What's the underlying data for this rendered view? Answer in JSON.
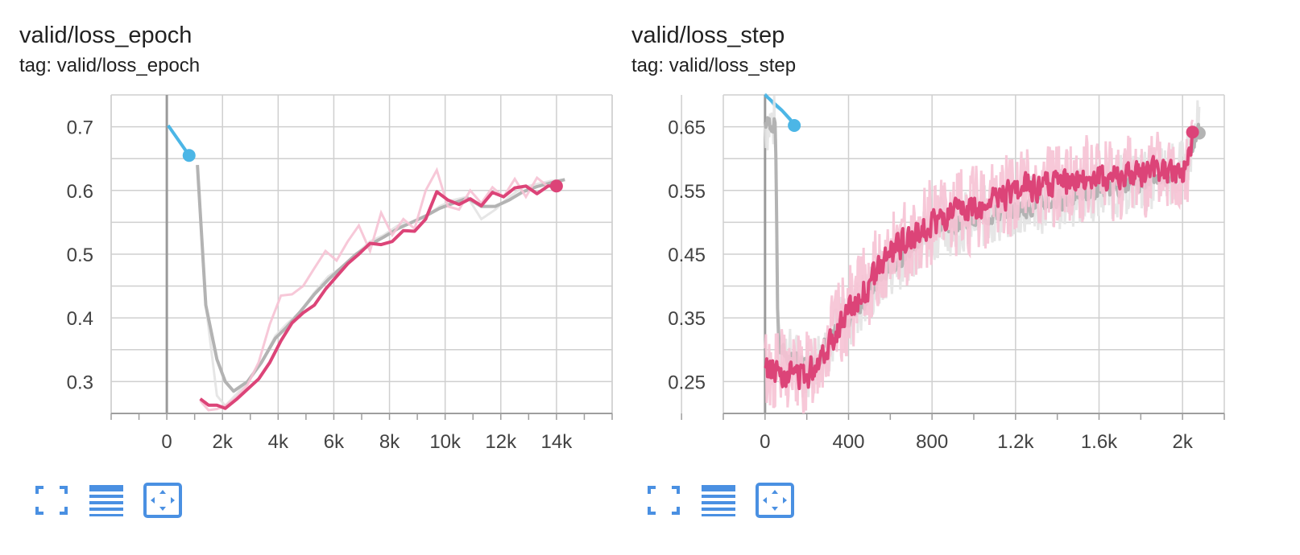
{
  "colors": {
    "pink": "#dc4478",
    "pink_light": "#f6c2d4",
    "gray": "#b3b3b3",
    "gray_light": "#e3e3e3",
    "blue": "#4cb6e6",
    "grid": "#cfcfcf",
    "axis": "#9e9e9e",
    "icon": "#4a90e2"
  },
  "toolbar": {
    "fullscreen_icon": "fullscreen-icon",
    "data_table_icon": "data-table-icon",
    "fit_domain_icon": "fit-domain-icon"
  },
  "cards": [
    {
      "title": "valid/loss_epoch",
      "tag": "tag: valid/loss_epoch",
      "chart_data": {
        "type": "line",
        "title": "valid/loss_epoch",
        "xlim": [
          -2000,
          16000
        ],
        "ylim": [
          0.25,
          0.75
        ],
        "x_ticks": [
          0,
          2000,
          4000,
          6000,
          8000,
          10000,
          12000,
          14000
        ],
        "x_tick_labels": [
          "0",
          "2k",
          "4k",
          "6k",
          "8k",
          "10k",
          "12k",
          "14k"
        ],
        "y_ticks": [
          0.3,
          0.4,
          0.5,
          0.6,
          0.7
        ],
        "y_tick_labels": [
          "0.3",
          "0.4",
          "0.5",
          "0.6",
          "0.7"
        ],
        "grid": true,
        "series": [
          {
            "color": "#4cb6e6",
            "end_marker": true,
            "raw": [
              [
                50,
                0.702
              ],
              [
                800,
                0.655
              ]
            ],
            "smoothed": [
              [
                50,
                0.702
              ],
              [
                800,
                0.655
              ]
            ]
          },
          {
            "color": "#b3b3b3",
            "raw": [
              [
                1100,
                0.64
              ],
              [
                1400,
                0.42
              ],
              [
                1800,
                0.278
              ],
              [
                2100,
                0.262
              ],
              [
                2500,
                0.28
              ],
              [
                2900,
                0.3
              ],
              [
                3400,
                0.33
              ],
              [
                3900,
                0.372
              ],
              [
                4300,
                0.39
              ],
              [
                4800,
                0.41
              ],
              [
                5300,
                0.44
              ],
              [
                5800,
                0.465
              ],
              [
                6300,
                0.48
              ],
              [
                6800,
                0.5
              ],
              [
                7300,
                0.52
              ],
              [
                7800,
                0.53
              ],
              [
                8300,
                0.545
              ],
              [
                8800,
                0.55
              ],
              [
                9300,
                0.56
              ],
              [
                9800,
                0.575
              ],
              [
                10300,
                0.585
              ],
              [
                10800,
                0.59
              ],
              [
                11300,
                0.555
              ],
              [
                11800,
                0.57
              ],
              [
                12300,
                0.59
              ],
              [
                12800,
                0.605
              ],
              [
                13300,
                0.61
              ],
              [
                13800,
                0.615
              ],
              [
                14300,
                0.617
              ]
            ],
            "smoothed": [
              [
                1100,
                0.64
              ],
              [
                1400,
                0.42
              ],
              [
                1800,
                0.335
              ],
              [
                2100,
                0.3
              ],
              [
                2400,
                0.285
              ],
              [
                2900,
                0.3
              ],
              [
                3400,
                0.33
              ],
              [
                3900,
                0.368
              ],
              [
                4300,
                0.385
              ],
              [
                4800,
                0.41
              ],
              [
                5300,
                0.437
              ],
              [
                5800,
                0.46
              ],
              [
                6300,
                0.48
              ],
              [
                6800,
                0.5
              ],
              [
                7300,
                0.515
              ],
              [
                7800,
                0.527
              ],
              [
                8300,
                0.54
              ],
              [
                8800,
                0.55
              ],
              [
                9300,
                0.56
              ],
              [
                9800,
                0.572
              ],
              [
                10300,
                0.58
              ],
              [
                10800,
                0.588
              ],
              [
                11300,
                0.575
              ],
              [
                11800,
                0.575
              ],
              [
                12300,
                0.585
              ],
              [
                12800,
                0.598
              ],
              [
                13300,
                0.606
              ],
              [
                13800,
                0.612
              ],
              [
                14300,
                0.617
              ]
            ]
          },
          {
            "color": "#dc4478",
            "end_marker": true,
            "raw": [
              [
                1200,
                0.27
              ],
              [
                1500,
                0.255
              ],
              [
                1800,
                0.257
              ],
              [
                2100,
                0.262
              ],
              [
                2500,
                0.275
              ],
              [
                2900,
                0.295
              ],
              [
                3300,
                0.33
              ],
              [
                3700,
                0.39
              ],
              [
                4100,
                0.435
              ],
              [
                4500,
                0.437
              ],
              [
                4900,
                0.45
              ],
              [
                5300,
                0.478
              ],
              [
                5700,
                0.505
              ],
              [
                6100,
                0.49
              ],
              [
                6500,
                0.52
              ],
              [
                6900,
                0.545
              ],
              [
                7300,
                0.505
              ],
              [
                7700,
                0.565
              ],
              [
                8100,
                0.53
              ],
              [
                8500,
                0.555
              ],
              [
                8900,
                0.54
              ],
              [
                9300,
                0.6
              ],
              [
                9700,
                0.632
              ],
              [
                10100,
                0.575
              ],
              [
                10500,
                0.57
              ],
              [
                10900,
                0.6
              ],
              [
                11300,
                0.58
              ],
              [
                11700,
                0.605
              ],
              [
                12100,
                0.59
              ],
              [
                12500,
                0.618
              ],
              [
                12900,
                0.59
              ],
              [
                13300,
                0.62
              ],
              [
                13700,
                0.606
              ],
              [
                14000,
                0.612
              ]
            ],
            "smoothed": [
              [
                1200,
                0.273
              ],
              [
                1500,
                0.263
              ],
              [
                1800,
                0.263
              ],
              [
                2100,
                0.258
              ],
              [
                2500,
                0.272
              ],
              [
                2900,
                0.288
              ],
              [
                3300,
                0.304
              ],
              [
                3700,
                0.33
              ],
              [
                4100,
                0.364
              ],
              [
                4500,
                0.392
              ],
              [
                4900,
                0.408
              ],
              [
                5300,
                0.42
              ],
              [
                5700,
                0.445
              ],
              [
                6100,
                0.465
              ],
              [
                6500,
                0.485
              ],
              [
                6900,
                0.5
              ],
              [
                7300,
                0.517
              ],
              [
                7700,
                0.515
              ],
              [
                8100,
                0.52
              ],
              [
                8500,
                0.537
              ],
              [
                8900,
                0.536
              ],
              [
                9300,
                0.555
              ],
              [
                9700,
                0.598
              ],
              [
                10100,
                0.585
              ],
              [
                10500,
                0.578
              ],
              [
                10900,
                0.587
              ],
              [
                11300,
                0.576
              ],
              [
                11700,
                0.597
              ],
              [
                12100,
                0.59
              ],
              [
                12500,
                0.604
              ],
              [
                12900,
                0.607
              ],
              [
                13300,
                0.595
              ],
              [
                13700,
                0.607
              ],
              [
                14000,
                0.607
              ]
            ]
          }
        ]
      }
    },
    {
      "title": "valid/loss_step",
      "tag": "tag: valid/loss_step",
      "chart_data": {
        "type": "line",
        "title": "valid/loss_step",
        "xlim": [
          -200,
          2200
        ],
        "ylim": [
          0.2,
          0.7
        ],
        "x_ticks": [
          0,
          400,
          800,
          1200,
          1600,
          2000
        ],
        "x_tick_labels": [
          "0",
          "400",
          "800",
          "1.2k",
          "1.6k",
          "2k"
        ],
        "y_ticks": [
          0.25,
          0.35,
          0.45,
          0.55,
          0.65
        ],
        "y_tick_labels": [
          "0.25",
          "0.35",
          "0.45",
          "0.55",
          "0.65"
        ],
        "grid": true,
        "series": [
          {
            "color": "#4cb6e6",
            "end_marker": true,
            "raw": [
              [
                0,
                0.702
              ],
              [
                40,
                0.685
              ],
              [
                80,
                0.675
              ],
              [
                120,
                0.66
              ],
              [
                140,
                0.652
              ]
            ],
            "smoothed": [
              [
                0,
                0.7
              ],
              [
                40,
                0.688
              ],
              [
                80,
                0.676
              ],
              [
                120,
                0.662
              ],
              [
                140,
                0.652
              ]
            ]
          },
          {
            "color": "#b3b3b3",
            "end_marker": true,
            "noise_seed": 7,
            "anchors": [
              [
                0,
                0.655
              ],
              [
                30,
                0.655
              ],
              [
                50,
                0.655
              ],
              [
                60,
                0.3
              ],
              [
                200,
                0.27
              ],
              [
                400,
                0.35
              ],
              [
                600,
                0.43
              ],
              [
                800,
                0.49
              ],
              [
                1200,
                0.52
              ],
              [
                1600,
                0.55
              ],
              [
                2000,
                0.58
              ],
              [
                2080,
                0.652
              ]
            ],
            "noise_raw": 0.05,
            "noise_smoothed": 0.02,
            "step": 4
          },
          {
            "color": "#dc4478",
            "end_marker": true,
            "noise_seed": 13,
            "anchors": [
              [
                0,
                0.27
              ],
              [
                200,
                0.26
              ],
              [
                400,
                0.36
              ],
              [
                600,
                0.45
              ],
              [
                800,
                0.5
              ],
              [
                1000,
                0.52
              ],
              [
                1200,
                0.55
              ],
              [
                1600,
                0.57
              ],
              [
                2000,
                0.58
              ],
              [
                2050,
                0.625
              ]
            ],
            "noise_raw": 0.07,
            "noise_smoothed": 0.03,
            "step": 4
          }
        ]
      }
    }
  ]
}
